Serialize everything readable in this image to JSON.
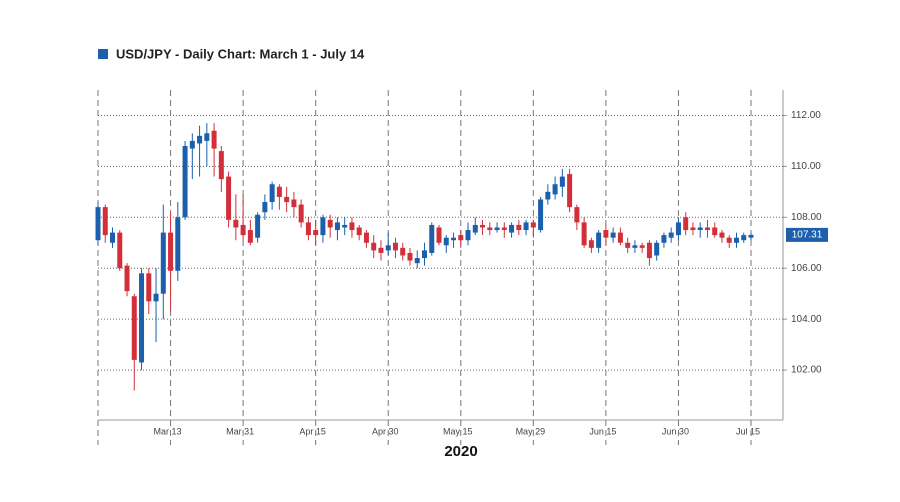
{
  "chart_data": {
    "type": "candlestick",
    "title": "USD/JPY - Daily Chart: March 1 - July 14",
    "x_label": "2020",
    "up_color": "#1c5fad",
    "down_color": "#d32f3a",
    "categories": [
      null,
      null,
      null,
      null,
      null,
      null,
      null,
      null,
      null,
      null,
      "Mar 13",
      null,
      null,
      null,
      null,
      null,
      null,
      null,
      null,
      null,
      "Mar 31",
      null,
      null,
      null,
      null,
      null,
      null,
      null,
      null,
      null,
      "Apr 15",
      null,
      null,
      null,
      null,
      null,
      null,
      null,
      null,
      null,
      "Apr 30",
      null,
      null,
      null,
      null,
      null,
      null,
      null,
      null,
      null,
      "May 15",
      null,
      null,
      null,
      null,
      null,
      null,
      null,
      null,
      null,
      "May 29",
      null,
      null,
      null,
      null,
      null,
      null,
      null,
      null,
      null,
      "Jun 15",
      null,
      null,
      null,
      null,
      null,
      null,
      null,
      null,
      null,
      "Jun 30",
      null,
      null,
      null,
      null,
      null,
      null,
      null,
      null,
      null,
      "Jul 15"
    ],
    "open": [
      107.1,
      108.4,
      107.0,
      107.4,
      106.1,
      104.9,
      102.3,
      105.8,
      104.7,
      105.0,
      107.4,
      105.9,
      108.0,
      110.7,
      110.9,
      111.0,
      111.4,
      110.6,
      109.6,
      107.9,
      107.7,
      107.5,
      107.2,
      108.2,
      108.6,
      109.2,
      108.8,
      108.7,
      108.5,
      107.8,
      107.5,
      107.3,
      107.9,
      107.5,
      107.6,
      107.8,
      107.6,
      107.4,
      107.0,
      106.8,
      106.7,
      107.0,
      106.8,
      106.6,
      106.2,
      106.4,
      106.6,
      107.6,
      106.9,
      107.1,
      107.3,
      107.1,
      107.4,
      107.7,
      107.6,
      107.5,
      107.6,
      107.4,
      107.7,
      107.5,
      107.8,
      107.5,
      108.7,
      108.9,
      109.2,
      109.7,
      108.4,
      107.8,
      107.1,
      106.8,
      107.5,
      107.2,
      107.4,
      107.0,
      106.8,
      106.9,
      107.0,
      106.5,
      107.0,
      107.2,
      107.3,
      108.0,
      107.6,
      107.5,
      107.6,
      107.6,
      107.4,
      107.2,
      107.0,
      107.1,
      107.2
    ],
    "high": [
      108.6,
      108.5,
      107.6,
      107.5,
      106.2,
      105.0,
      106.0,
      106.0,
      106.0,
      108.5,
      108.2,
      108.6,
      111.0,
      111.3,
      111.6,
      111.7,
      111.7,
      110.8,
      109.8,
      108.9,
      108.9,
      107.9,
      108.2,
      108.9,
      109.4,
      109.3,
      109.2,
      109.0,
      108.7,
      108.0,
      107.9,
      108.1,
      108.1,
      108.0,
      108.0,
      108.0,
      107.7,
      107.5,
      107.3,
      107.1,
      107.4,
      107.2,
      107.0,
      106.8,
      106.7,
      107.0,
      107.8,
      107.7,
      107.3,
      107.4,
      107.5,
      107.8,
      108.0,
      107.9,
      107.8,
      107.8,
      107.8,
      107.8,
      107.9,
      107.9,
      107.9,
      108.8,
      109.3,
      109.6,
      109.9,
      109.9,
      108.5,
      108.0,
      107.2,
      107.5,
      107.7,
      107.6,
      107.6,
      107.2,
      107.1,
      107.0,
      107.1,
      107.1,
      107.4,
      107.6,
      108.0,
      108.2,
      107.8,
      107.8,
      107.9,
      107.8,
      107.5,
      107.3,
      107.4,
      107.4,
      107.4
    ],
    "low": [
      106.9,
      107.0,
      106.8,
      105.9,
      104.9,
      101.2,
      102.0,
      104.2,
      103.1,
      104.0,
      104.3,
      105.5,
      107.9,
      109.5,
      109.6,
      110.0,
      109.6,
      109.0,
      107.6,
      107.1,
      107.1,
      106.9,
      107.0,
      107.9,
      108.3,
      108.3,
      108.2,
      108.0,
      107.6,
      107.1,
      106.9,
      107.0,
      107.2,
      107.1,
      107.3,
      107.2,
      107.1,
      106.8,
      106.4,
      106.3,
      106.5,
      106.4,
      106.3,
      106.1,
      106.0,
      106.1,
      106.5,
      106.9,
      106.6,
      106.8,
      106.8,
      106.9,
      107.3,
      107.3,
      107.3,
      107.4,
      107.2,
      107.2,
      107.3,
      107.3,
      107.2,
      107.4,
      108.5,
      108.7,
      108.8,
      108.2,
      107.5,
      106.8,
      106.6,
      106.6,
      106.9,
      107.0,
      106.9,
      106.6,
      106.6,
      106.6,
      106.1,
      106.3,
      106.8,
      107.0,
      107.1,
      107.3,
      107.3,
      107.2,
      107.2,
      107.2,
      107.0,
      106.8,
      106.8,
      107.0,
      107.1
    ],
    "close": [
      108.4,
      107.3,
      107.4,
      106.0,
      105.1,
      102.4,
      105.8,
      104.7,
      105.0,
      107.4,
      105.9,
      108.0,
      110.8,
      111.0,
      111.2,
      111.3,
      110.7,
      109.5,
      107.9,
      107.6,
      107.3,
      107.0,
      108.1,
      108.6,
      109.3,
      108.8,
      108.6,
      108.4,
      107.8,
      107.3,
      107.3,
      108.0,
      107.6,
      107.8,
      107.7,
      107.5,
      107.3,
      107.0,
      106.7,
      106.6,
      106.9,
      106.7,
      106.5,
      106.3,
      106.4,
      106.7,
      107.7,
      107.0,
      107.2,
      107.2,
      107.1,
      107.5,
      107.7,
      107.6,
      107.5,
      107.6,
      107.5,
      107.7,
      107.5,
      107.8,
      107.6,
      108.7,
      109.0,
      109.3,
      109.6,
      108.4,
      107.8,
      106.9,
      106.8,
      107.4,
      107.2,
      107.4,
      107.0,
      106.8,
      106.9,
      106.8,
      106.4,
      107.0,
      107.3,
      107.4,
      107.8,
      107.5,
      107.5,
      107.6,
      107.5,
      107.3,
      107.2,
      107.0,
      107.2,
      107.3,
      107.31
    ],
    "ylim": [
      100,
      113
    ],
    "yticks": [
      {
        "value": 102,
        "label": "102.00"
      },
      {
        "value": 104,
        "label": "104.00"
      },
      {
        "value": 106,
        "label": "106.00"
      },
      {
        "value": 108,
        "label": "108.00"
      },
      {
        "value": 110,
        "label": "110.00"
      },
      {
        "value": 112,
        "label": "112.00"
      }
    ],
    "grid": true
  }
}
